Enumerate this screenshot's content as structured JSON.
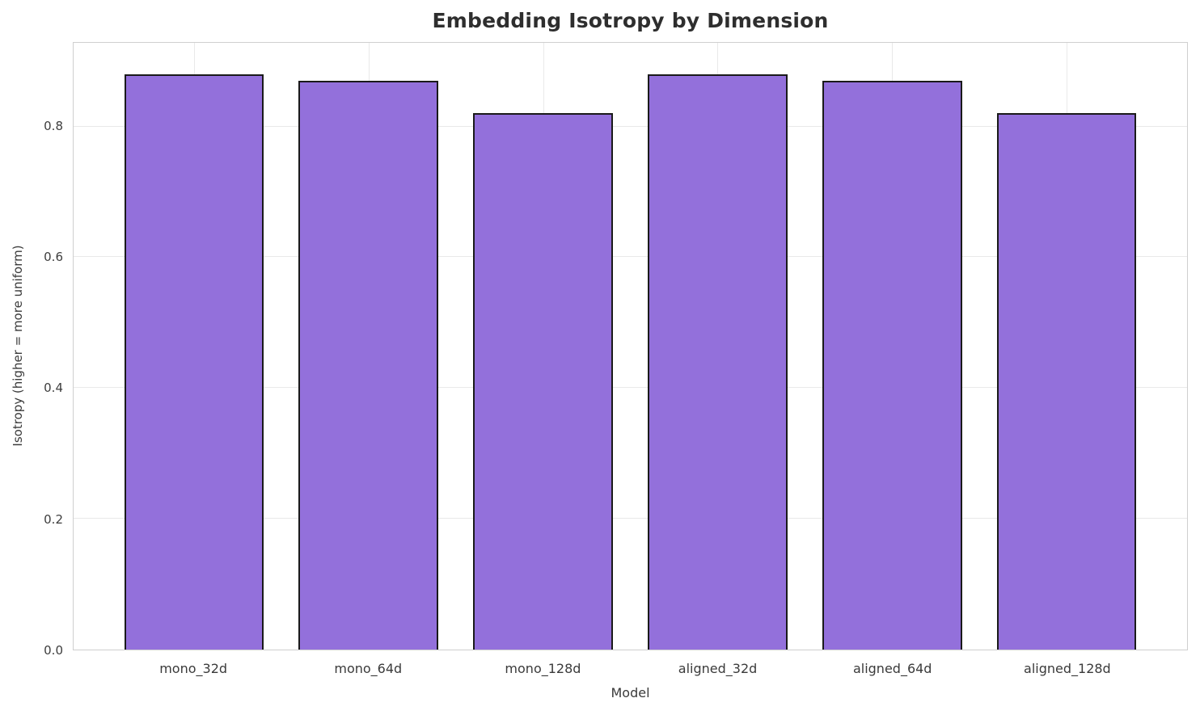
{
  "chart_data": {
    "type": "bar",
    "title": "Embedding Isotropy by Dimension",
    "xlabel": "Model",
    "ylabel": "Isotropy (higher = more uniform)",
    "categories": [
      "mono_32d",
      "mono_64d",
      "mono_128d",
      "aligned_32d",
      "aligned_64d",
      "aligned_128d"
    ],
    "values": [
      0.88,
      0.87,
      0.82,
      0.88,
      0.87,
      0.82
    ],
    "ylim": [
      0,
      0.928
    ],
    "yticks": [
      0.0,
      0.2,
      0.4,
      0.6,
      0.8
    ],
    "grid": true,
    "legend": "none",
    "bar_color": "#9370DB",
    "bar_edge_color": "#1a1a1a",
    "grid_color": "#e9e9e9",
    "axes_edge_color": "#cfcfcf",
    "background_color": "#ffffff",
    "title_color": "#2e2e2e",
    "tick_color": "#3d3d3d"
  }
}
